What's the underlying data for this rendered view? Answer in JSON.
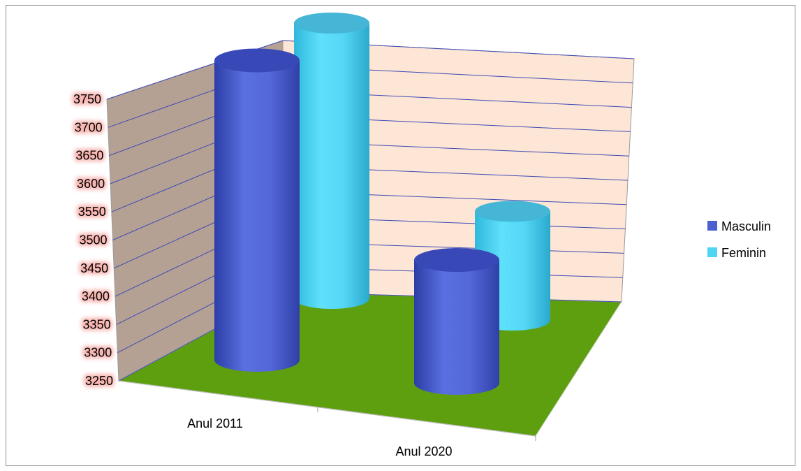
{
  "chart_data": {
    "type": "bar",
    "style": "3d-cylinder",
    "categories": [
      "Anul 2011",
      "Anul 2020"
    ],
    "series": [
      {
        "name": "Masculin",
        "values": [
          3690,
          3416
        ]
      },
      {
        "name": "Feminin",
        "values": [
          3750,
          3430
        ]
      }
    ],
    "ylim": [
      3250,
      3750
    ],
    "yticks": [
      "3250",
      "3300",
      "3350",
      "3400",
      "3450",
      "3500",
      "3550",
      "3600",
      "3650",
      "3700",
      "3750"
    ],
    "grid": true,
    "legend_position": "right",
    "colors": {
      "Masculin": "#4a5fd0",
      "Feminin": "#4fd4f2",
      "floor": "#5e9f10",
      "back_wall": "#fde6d5",
      "side_wall": "#b4a193",
      "gridline": "#3e4ab6",
      "tick_glow": "#f27a72"
    }
  }
}
